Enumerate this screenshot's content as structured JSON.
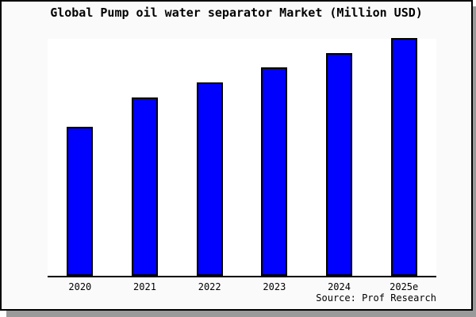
{
  "title": "Global Pump oil water separator Market (Million USD)",
  "source": "Source: Prof Research",
  "window": {
    "background": "#fafafa",
    "frame_border_color": "#000000",
    "shadow_color": "#9a9a9a"
  },
  "chart_data": {
    "type": "bar",
    "title": "Global Pump oil water separator Market (Million USD)",
    "categories": [
      "2020",
      "2021",
      "2022",
      "2023",
      "2024",
      "2025e"
    ],
    "values": [
      188,
      225,
      244,
      263,
      281,
      300
    ],
    "values_note": "y-axis has no tick labels or gridlines; values are relative bar heights (pixels) read from the chart",
    "xlabel": "",
    "ylabel": "",
    "ylim": [
      0,
      299
    ],
    "grid": false,
    "legend": false,
    "bar_color": "#0000ff",
    "bar_border_color": "#000000",
    "plot_background": "#ffffff",
    "axis_color": "#000000",
    "annotation": "Source: Prof Research"
  }
}
